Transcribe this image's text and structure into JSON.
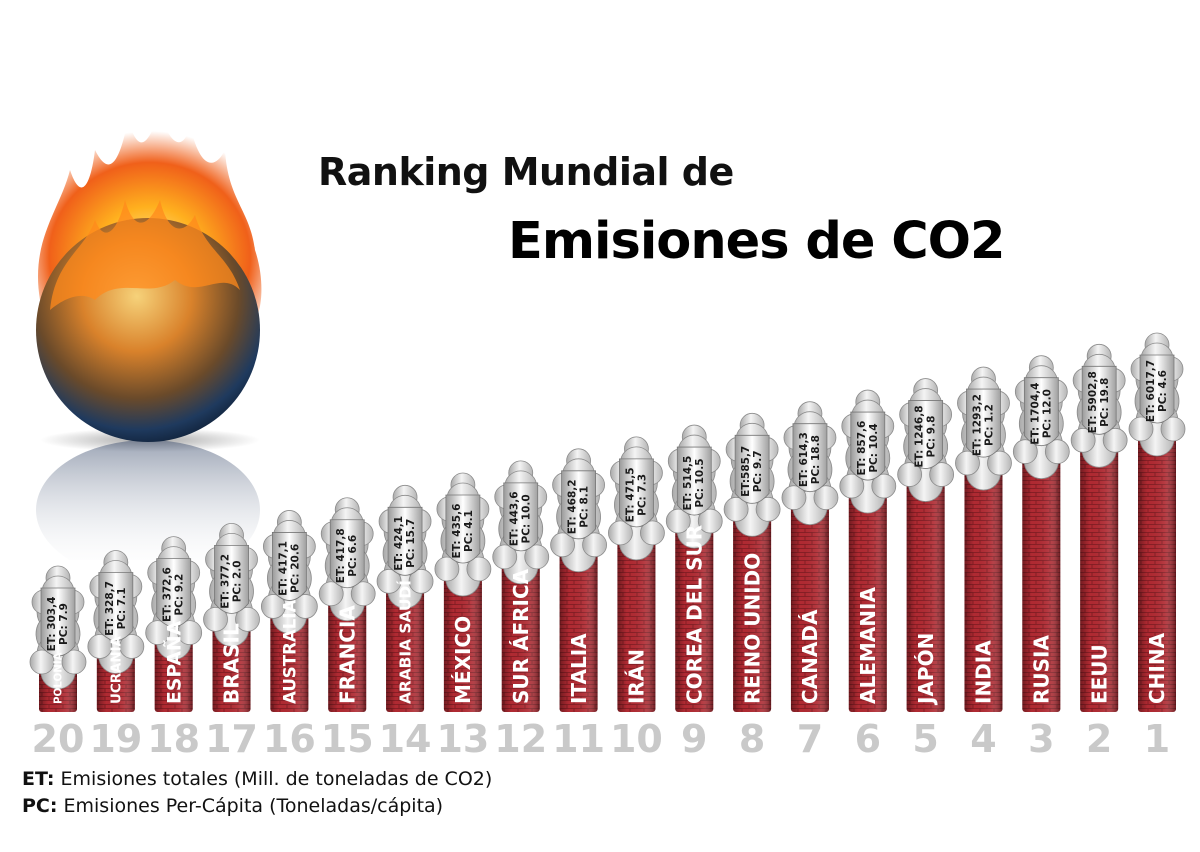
{
  "title_line1": "Ranking Mundial de",
  "title_line2": "Emisiones de CO2",
  "legend": {
    "et_key": "ET:",
    "et_text": "Emisiones totales (Mill. de toneladas de CO2)",
    "pc_key": "PC:",
    "pc_text": "Emisiones Per-Cápita (Toneladas/cápita)"
  },
  "colors": {
    "chimney": "#b02a32",
    "chimney_dark": "#8a1a22",
    "rank": "#c9c9c9",
    "smoke": "#e6e6e6"
  },
  "chart_data": {
    "type": "bar",
    "series": [
      {
        "rank": 20,
        "country": "POLONIA",
        "et": 303.4,
        "pc": 7.9,
        "et_label": "ET: 303,4",
        "pc_label": "PC: 7.9"
      },
      {
        "rank": 19,
        "country": "UCRANIA",
        "et": 328.7,
        "pc": 7.1,
        "et_label": "ET: 328,7",
        "pc_label": "PC: 7.1"
      },
      {
        "rank": 18,
        "country": "ESPAÑA",
        "et": 372.6,
        "pc": 9.2,
        "et_label": "ET: 372,6",
        "pc_label": "PC: 9.2"
      },
      {
        "rank": 17,
        "country": "BRASIL",
        "et": 377.2,
        "pc": 2.0,
        "et_label": "ET: 377,2",
        "pc_label": "PC: 2.0"
      },
      {
        "rank": 16,
        "country": "AUSTRALIA",
        "et": 417.1,
        "pc": 20.6,
        "et_label": "ET: 417,1",
        "pc_label": "PC: 20.6"
      },
      {
        "rank": 15,
        "country": "FRANCIA",
        "et": 417.8,
        "pc": 6.6,
        "et_label": "ET: 417,8",
        "pc_label": "PC: 6.6"
      },
      {
        "rank": 14,
        "country": "ARABIA SAUDÍ",
        "et": 424.1,
        "pc": 15.7,
        "et_label": "ET: 424,1",
        "pc_label": "PC: 15.7"
      },
      {
        "rank": 13,
        "country": "MÉXICO",
        "et": 435.6,
        "pc": 4.1,
        "et_label": "ET: 435,6",
        "pc_label": "PC: 4.1"
      },
      {
        "rank": 12,
        "country": "SUR ÁFRICA",
        "et": 443.6,
        "pc": 10.0,
        "et_label": "ET: 443,6",
        "pc_label": "PC: 10.0"
      },
      {
        "rank": 11,
        "country": "ITALIA",
        "et": 468.2,
        "pc": 8.1,
        "et_label": "ET: 468,2",
        "pc_label": "PC: 8.1"
      },
      {
        "rank": 10,
        "country": "IRÁN",
        "et": 471.5,
        "pc": 7.3,
        "et_label": "ET: 471,5",
        "pc_label": "PC: 7.3"
      },
      {
        "rank": 9,
        "country": "COREA DEL SUR",
        "et": 514.5,
        "pc": 10.5,
        "et_label": "ET: 514,5",
        "pc_label": "PC: 10.5"
      },
      {
        "rank": 8,
        "country": "REINO UNIDO",
        "et": 585.7,
        "pc": 9.7,
        "et_label": "ET:585,7",
        "pc_label": "PC: 9.7"
      },
      {
        "rank": 7,
        "country": "CANADÁ",
        "et": 614.3,
        "pc": 18.8,
        "et_label": "ET: 614,3",
        "pc_label": "PC: 18.8"
      },
      {
        "rank": 6,
        "country": "ALEMANIA",
        "et": 857.6,
        "pc": 10.4,
        "et_label": "ET: 857,6",
        "pc_label": "PC: 10.4"
      },
      {
        "rank": 5,
        "country": "JAPÓN",
        "et": 1246.8,
        "pc": 9.8,
        "et_label": "ET: 1246,8",
        "pc_label": "PC: 9.8"
      },
      {
        "rank": 4,
        "country": "INDIA",
        "et": 1293.2,
        "pc": 1.2,
        "et_label": "ET: 1293,2",
        "pc_label": "PC: 1.2"
      },
      {
        "rank": 3,
        "country": "RUSIA",
        "et": 1704.4,
        "pc": 12.0,
        "et_label": "ET: 1704,4",
        "pc_label": "PC: 12.0"
      },
      {
        "rank": 2,
        "country": "EEUU",
        "et": 5902.8,
        "pc": 19.8,
        "et_label": "ET: 5902,8",
        "pc_label": "PC: 19.8"
      },
      {
        "rank": 1,
        "country": "CHINA",
        "et": 6017.7,
        "pc": 4.6,
        "et_label": "ET: 6017,7",
        "pc_label": "PC: 4.6"
      }
    ]
  }
}
